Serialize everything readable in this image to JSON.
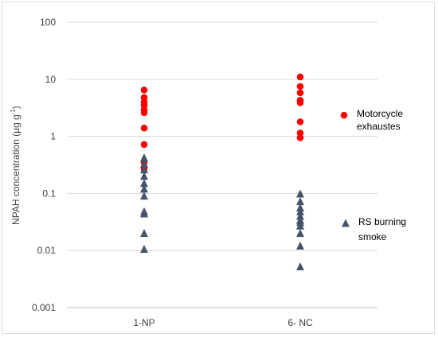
{
  "chart_data": {
    "type": "scatter",
    "xlabel": "",
    "ylabel_parts": [
      "NPAH concentration (μg g",
      "-1",
      ")"
    ],
    "y_scale": "log",
    "ylim": [
      0.001,
      100
    ],
    "y_ticks": [
      "100",
      "10",
      "1",
      "0.1",
      "0.01",
      "0.001"
    ],
    "categories": [
      "1-NP",
      "6- NC"
    ],
    "grid": true,
    "legend_placement": "right",
    "series": [
      {
        "name_lines": [
          "Motorcycle",
          "exhaustes"
        ],
        "marker": "circle",
        "color": "#ff0000",
        "points": [
          {
            "category": "1-NP",
            "values": [
              6.5,
              4.8,
              4.0,
              3.5,
              2.9,
              2.6,
              1.4,
              0.72,
              0.35,
              0.27
            ]
          },
          {
            "category": "6- NC",
            "values": [
              11.0,
              7.5,
              5.8,
              4.3,
              3.9,
              1.8,
              1.15,
              0.95
            ]
          }
        ]
      },
      {
        "name_lines": [
          "RS burning",
          "smoke"
        ],
        "marker": "triangle",
        "color": "#44546a",
        "points": [
          {
            "category": "1-NP",
            "values": [
              0.42,
              0.33,
              0.26,
              0.2,
              0.15,
              0.12,
              0.09,
              0.048,
              0.044,
              0.02,
              0.0105
            ]
          },
          {
            "category": "6- NC",
            "values": [
              0.098,
              0.072,
              0.056,
              0.048,
              0.04,
              0.034,
              0.031,
              0.027,
              0.02,
              0.012,
              0.0052
            ]
          }
        ]
      }
    ]
  }
}
